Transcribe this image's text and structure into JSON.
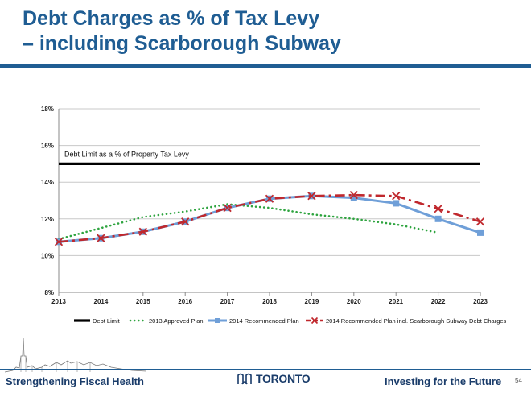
{
  "slide": {
    "title_line1": "Debt Charges as % of Tax Levy",
    "title_line2": "– including Scarborough Subway",
    "footer_left": "Strengthening  Fiscal Health",
    "logo_text": "TORONTO",
    "footer_right": "Investing for the Future",
    "page_number": "54"
  },
  "colors": {
    "brand_blue": "#1f5d93",
    "debt_limit": "#000000",
    "approved_2013": "#2ea43f",
    "recommended_2014": "#6f9fd8",
    "subway_2014": "#c0282d"
  },
  "chart_data": {
    "type": "line",
    "x": [
      2013,
      2014,
      2015,
      2016,
      2017,
      2018,
      2019,
      2020,
      2021,
      2022,
      2023
    ],
    "ylim": [
      8,
      18
    ],
    "yticks": [
      "8%",
      "10%",
      "12%",
      "14%",
      "16%",
      "18%"
    ],
    "ytick_values": [
      8,
      10,
      12,
      14,
      16,
      18
    ],
    "xtick_labels": [
      "2013",
      "2014",
      "2015",
      "2016",
      "2017",
      "2018",
      "2019",
      "2020",
      "2021",
      "2022",
      "2023"
    ],
    "annotation": "Debt Limit as a % of Property Tax Levy",
    "grid": true,
    "legend_position": "bottom",
    "series": [
      {
        "name": "Debt Limit",
        "style": "solid-thick",
        "color": "#000000",
        "values": [
          15,
          15,
          15,
          15,
          15,
          15,
          15,
          15,
          15,
          15,
          15
        ]
      },
      {
        "name": "2013 Approved Plan",
        "style": "dotted",
        "color": "#2ea43f",
        "values": [
          10.9,
          11.5,
          12.1,
          12.4,
          12.8,
          12.6,
          12.25,
          12.0,
          11.7,
          11.25,
          null
        ]
      },
      {
        "name": "2014 Recommended Plan",
        "style": "solid-square",
        "color": "#6f9fd8",
        "values": [
          10.75,
          10.95,
          11.3,
          11.85,
          12.6,
          13.1,
          13.25,
          13.15,
          12.85,
          12.0,
          11.25
        ]
      },
      {
        "name": "2014 Recommended Plan incl. Scarborough Subway Debt Charges",
        "style": "dashdot-x",
        "color": "#c0282d",
        "values": [
          10.75,
          10.95,
          11.3,
          11.85,
          12.6,
          13.1,
          13.25,
          13.3,
          13.25,
          12.55,
          11.85
        ]
      }
    ]
  }
}
